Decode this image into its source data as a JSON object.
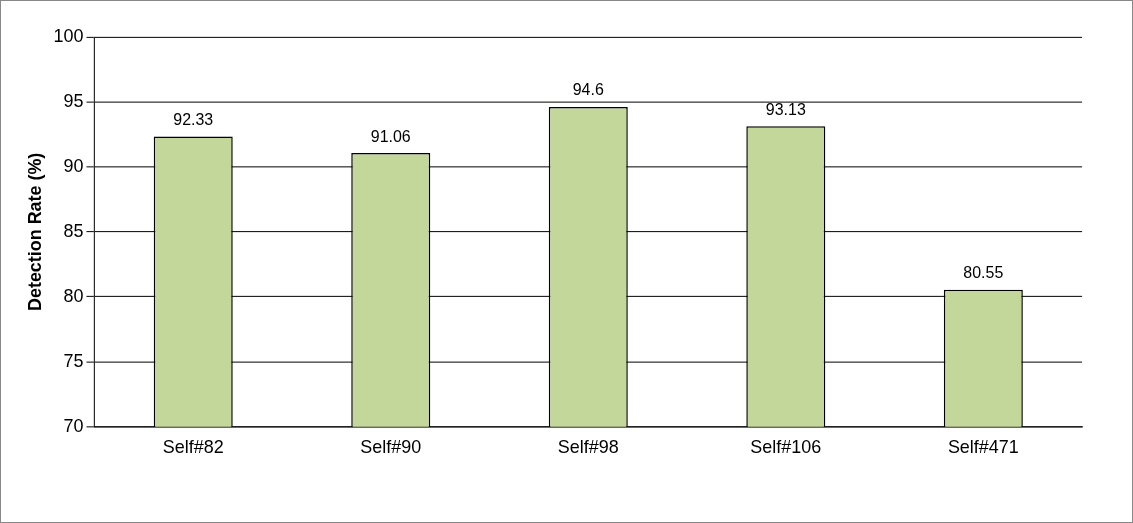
{
  "chart_data": {
    "type": "bar",
    "ylabel": "Detection Rate (%)",
    "categories": [
      "Self#82",
      "Self#90",
      "Self#98",
      "Self#106",
      "Self#471"
    ],
    "values": [
      92.33,
      91.06,
      94.6,
      93.13,
      80.55
    ],
    "color": "#c4d79b",
    "ylim": [
      70,
      100
    ],
    "yticks": [
      70,
      75,
      80,
      85,
      90,
      95,
      100
    ],
    "grid": "y",
    "legend": false,
    "data_labels": true
  }
}
